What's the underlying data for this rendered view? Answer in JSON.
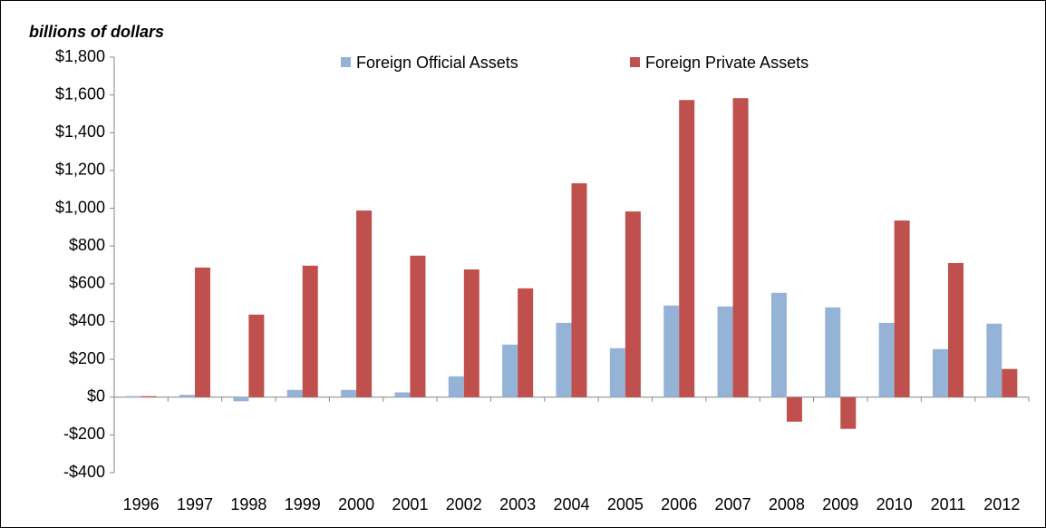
{
  "chart_data": {
    "type": "bar",
    "y_label": "billions of dollars",
    "categories": [
      "1996",
      "1997",
      "1998",
      "1999",
      "2000",
      "2001",
      "2002",
      "2003",
      "2004",
      "2005",
      "2006",
      "2007",
      "2008",
      "2009",
      "2010",
      "2011",
      "2012"
    ],
    "series": [
      {
        "name": "Foreign Official Assets",
        "color": "#95b3d7",
        "values": [
          5,
          12,
          -22,
          38,
          38,
          25,
          110,
          278,
          393,
          259,
          485,
          480,
          552,
          475,
          393,
          254,
          389
        ]
      },
      {
        "name": "Foreign Private Assets",
        "color": "#c0504d",
        "values": [
          5,
          686,
          437,
          696,
          988,
          749,
          676,
          576,
          1132,
          983,
          1573,
          1583,
          -130,
          -168,
          935,
          710,
          149
        ]
      }
    ],
    "ylim": [
      -400,
      1800
    ],
    "yticks": [
      {
        "value": -400,
        "label": "-$400"
      },
      {
        "value": -200,
        "label": "-$200"
      },
      {
        "value": 0,
        "label": "$0"
      },
      {
        "value": 200,
        "label": "$200"
      },
      {
        "value": 400,
        "label": "$400"
      },
      {
        "value": 600,
        "label": "$600"
      },
      {
        "value": 800,
        "label": "$800"
      },
      {
        "value": 1000,
        "label": "$1,000"
      },
      {
        "value": 1200,
        "label": "$1,200"
      },
      {
        "value": 1400,
        "label": "$1,400"
      },
      {
        "value": 1600,
        "label": "$1,600"
      },
      {
        "value": 1800,
        "label": "$1,800"
      }
    ],
    "grid": false,
    "legend": "top"
  }
}
